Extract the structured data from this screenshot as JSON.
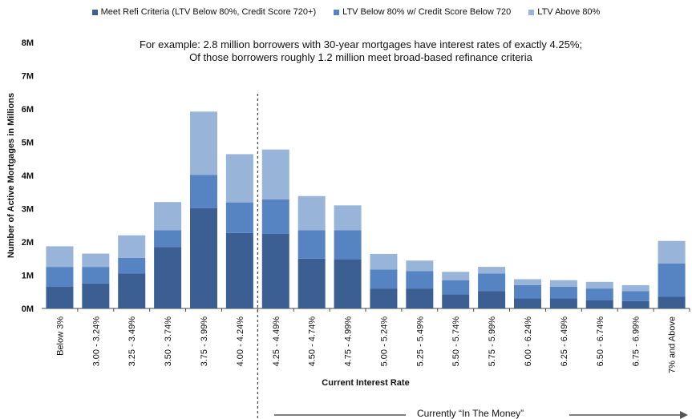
{
  "legend": [
    {
      "label": "Meet Refi Criteria (LTV Below 80%, Credit Score 720+)",
      "color": "#3b5f93"
    },
    {
      "label": "LTV Below 80% w/ Credit Score Below 720",
      "color": "#5683c2"
    },
    {
      "label": "LTV Above 80%",
      "color": "#98b4d9"
    }
  ],
  "annotation": {
    "line1": "For example: 2.8 million borrowers with 30-year mortgages have interest rates of exactly 4.25%;",
    "line2": "Of those borrowers roughly 1.2 million meet broad-based refinance criteria"
  },
  "callout": {
    "label": "Currently “In The Money”"
  },
  "chart_data": {
    "type": "bar",
    "stacked": true,
    "categories": [
      "Below 3%",
      "3.00 - 3.24%",
      "3.25 - 3.49%",
      "3.50 - 3.74%",
      "3.75 - 3.99%",
      "4.00 - 4.24%",
      "4.25 - 4.49%",
      "4.50 - 4.74%",
      "4.75 - 4.99%",
      "5.00 - 5.24%",
      "5.25 - 5.49%",
      "5.50 - 5.74%",
      "5.75 - 5.99%",
      "6.00 - 6.24%",
      "6.25 - 6.49%",
      "6.50 - 6.74%",
      "6.75 - 6.99%",
      "7% and Above"
    ],
    "series": [
      {
        "name": "Meet Refi Criteria (LTV Below 80%, Credit Score 720+)",
        "color": "#3b5f93",
        "values": [
          0.65,
          0.75,
          1.05,
          1.85,
          3.02,
          2.27,
          2.25,
          1.5,
          1.47,
          0.6,
          0.6,
          0.42,
          0.52,
          0.3,
          0.3,
          0.25,
          0.22,
          0.35
        ]
      },
      {
        "name": "LTV Below 80% w/ Credit Score Below 720",
        "color": "#5683c2",
        "values": [
          0.6,
          0.5,
          0.47,
          0.5,
          1.0,
          0.92,
          1.03,
          0.85,
          0.88,
          0.57,
          0.52,
          0.43,
          0.53,
          0.4,
          0.35,
          0.35,
          0.3,
          1.0
        ]
      },
      {
        "name": "LTV Above 80%",
        "color": "#98b4d9",
        "values": [
          0.62,
          0.4,
          0.68,
          0.85,
          1.9,
          1.45,
          1.5,
          1.03,
          0.75,
          0.47,
          0.32,
          0.25,
          0.2,
          0.18,
          0.2,
          0.2,
          0.18,
          0.68
        ]
      }
    ],
    "xlabel": "Current Interest Rate",
    "ylabel": "Number of Active Mortgages in Millions",
    "yticks": [
      "0M",
      "1M",
      "2M",
      "3M",
      "4M",
      "5M",
      "6M",
      "7M",
      "8M"
    ],
    "ylim": [
      0,
      8
    ],
    "divider_after_category": "4.00 - 4.24%"
  }
}
